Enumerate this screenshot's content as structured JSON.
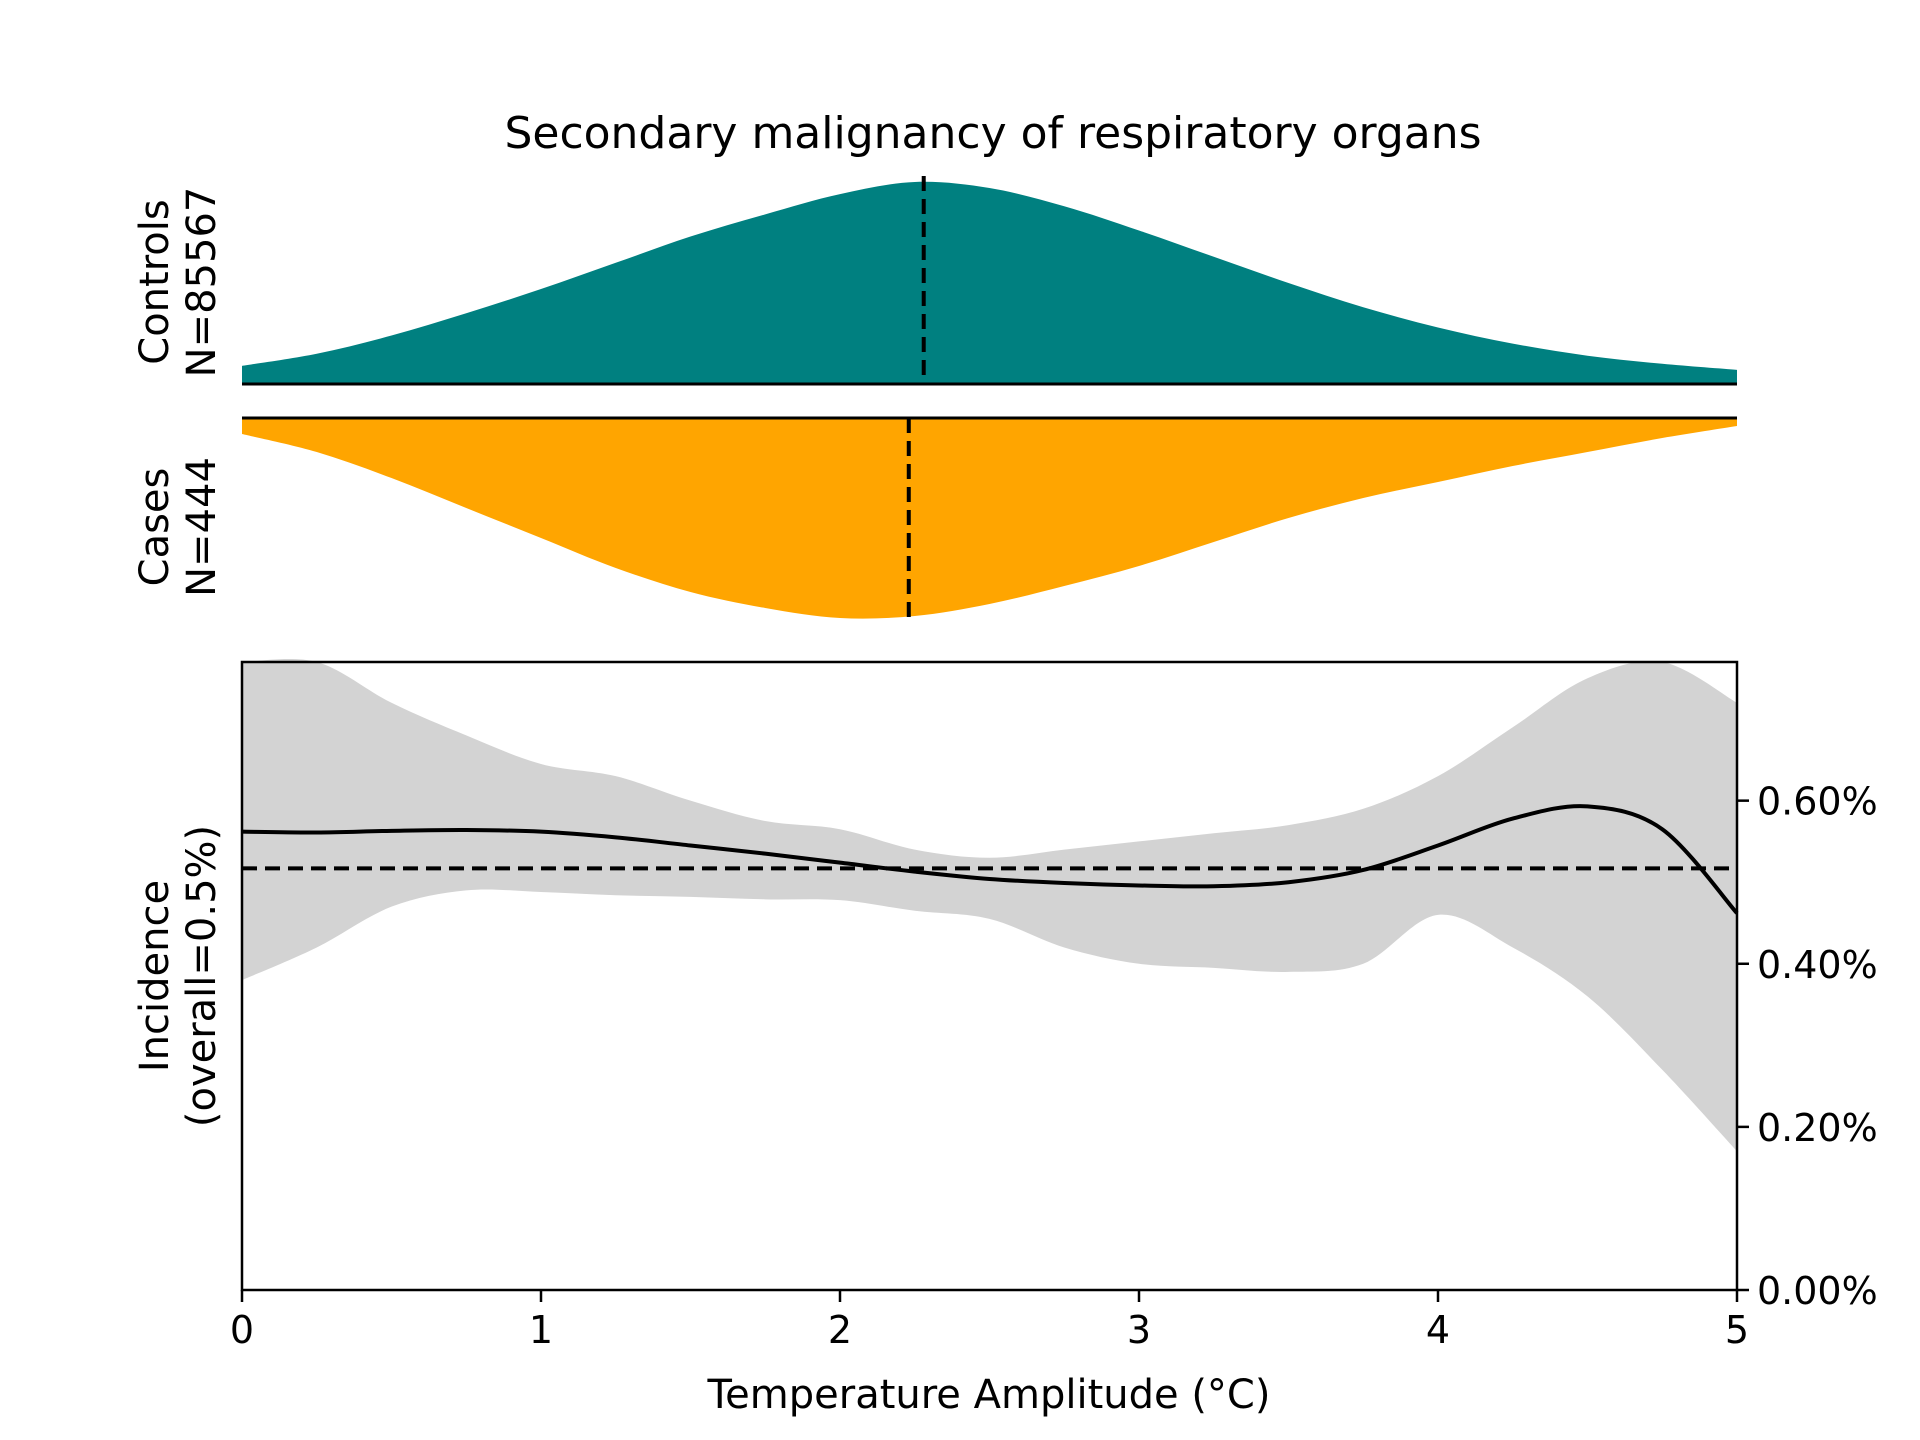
{
  "chart_data": {
    "type": "area",
    "title": "Secondary malignancy of respiratory organs",
    "xlabel": "Temperature Amplitude (°C)",
    "xlim": [
      0,
      5
    ],
    "x_ticks": [
      "0",
      "1",
      "2",
      "3",
      "4",
      "5"
    ],
    "controls": {
      "label": "Controls",
      "n_label": "N=85567",
      "color": "#008080",
      "median": 2.28,
      "density": {
        "x": [
          0,
          0.25,
          0.5,
          0.75,
          1.0,
          1.25,
          1.5,
          1.75,
          2.0,
          2.25,
          2.5,
          2.75,
          3.0,
          3.25,
          3.5,
          3.75,
          4.0,
          4.25,
          4.5,
          4.75,
          5.0
        ],
        "y": [
          0.09,
          0.15,
          0.24,
          0.35,
          0.47,
          0.6,
          0.73,
          0.84,
          0.94,
          1.0,
          0.97,
          0.88,
          0.76,
          0.63,
          0.5,
          0.38,
          0.28,
          0.2,
          0.14,
          0.1,
          0.07
        ]
      }
    },
    "cases": {
      "label": "Cases",
      "n_label": "N=444",
      "color": "#ffa500",
      "median": 2.23,
      "density": {
        "x": [
          0,
          0.25,
          0.5,
          0.75,
          1.0,
          1.25,
          1.5,
          1.75,
          2.0,
          2.25,
          2.5,
          2.75,
          3.0,
          3.25,
          3.5,
          3.75,
          4.0,
          4.25,
          4.5,
          4.75,
          5.0
        ],
        "y": [
          0.08,
          0.17,
          0.3,
          0.45,
          0.6,
          0.75,
          0.87,
          0.95,
          1.0,
          0.99,
          0.93,
          0.84,
          0.74,
          0.62,
          0.5,
          0.4,
          0.32,
          0.24,
          0.17,
          0.1,
          0.04
        ]
      }
    },
    "incidence": {
      "ylabel": "Incidence",
      "ylabel_sub": "(overall=0.5%)",
      "ylim": [
        0,
        0.77
      ],
      "y_ticks": [
        0,
        0.2,
        0.4,
        0.6
      ],
      "y_tick_labels": [
        "0.00%",
        "0.20%",
        "0.40%",
        "0.60%"
      ],
      "overall": 0.517,
      "x": [
        0,
        0.25,
        0.5,
        0.75,
        1.0,
        1.25,
        1.5,
        1.75,
        2.0,
        2.25,
        2.5,
        2.75,
        3.0,
        3.25,
        3.5,
        3.75,
        4.0,
        4.25,
        4.5,
        4.75,
        5.0
      ],
      "mean": [
        0.562,
        0.561,
        0.563,
        0.564,
        0.562,
        0.555,
        0.545,
        0.535,
        0.524,
        0.513,
        0.504,
        0.499,
        0.496,
        0.495,
        0.5,
        0.515,
        0.545,
        0.578,
        0.593,
        0.565,
        0.462
      ],
      "ci_upper": [
        0.77,
        0.77,
        0.72,
        0.68,
        0.645,
        0.63,
        0.6,
        0.575,
        0.565,
        0.54,
        0.53,
        0.54,
        0.55,
        0.56,
        0.57,
        0.59,
        0.63,
        0.69,
        0.75,
        0.77,
        0.72
      ],
      "ci_lower": [
        0.38,
        0.42,
        0.47,
        0.49,
        0.488,
        0.484,
        0.482,
        0.479,
        0.478,
        0.465,
        0.455,
        0.42,
        0.4,
        0.395,
        0.39,
        0.4,
        0.46,
        0.42,
        0.36,
        0.27,
        0.17
      ],
      "line_color": "#000000",
      "ci_color": "#d3d3d3"
    }
  }
}
